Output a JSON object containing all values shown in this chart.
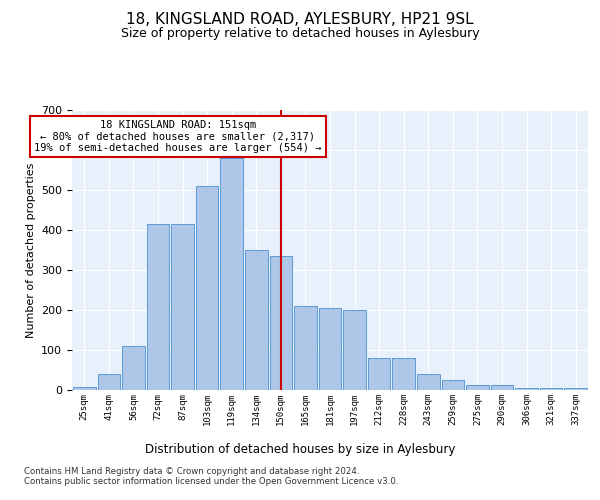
{
  "title": "18, KINGSLAND ROAD, AYLESBURY, HP21 9SL",
  "subtitle": "Size of property relative to detached houses in Aylesbury",
  "xlabel": "Distribution of detached houses by size in Aylesbury",
  "ylabel": "Number of detached properties",
  "bar_labels": [
    "25sqm",
    "41sqm",
    "56sqm",
    "72sqm",
    "87sqm",
    "103sqm",
    "119sqm",
    "134sqm",
    "150sqm",
    "165sqm",
    "181sqm",
    "197sqm",
    "212sqm",
    "228sqm",
    "243sqm",
    "259sqm",
    "275sqm",
    "290sqm",
    "306sqm",
    "321sqm",
    "337sqm"
  ],
  "bar_values": [
    8,
    40,
    110,
    415,
    415,
    510,
    580,
    350,
    335,
    210,
    205,
    200,
    80,
    80,
    40,
    25,
    12,
    12,
    5,
    5,
    5
  ],
  "bar_color": "#aec6e8",
  "bar_edge_color": "#5b9bd5",
  "vline_x_index": 8,
  "vline_color": "#cc0000",
  "annotation_text": "18 KINGSLAND ROAD: 151sqm\n← 80% of detached houses are smaller (2,317)\n19% of semi-detached houses are larger (554) →",
  "annotation_box_color": "#cc0000",
  "ylim": [
    0,
    700
  ],
  "yticks": [
    0,
    100,
    200,
    300,
    400,
    500,
    600,
    700
  ],
  "plot_bg_color": "#e8f0fb",
  "footer1": "Contains HM Land Registry data © Crown copyright and database right 2024.",
  "footer2": "Contains public sector information licensed under the Open Government Licence v3.0."
}
